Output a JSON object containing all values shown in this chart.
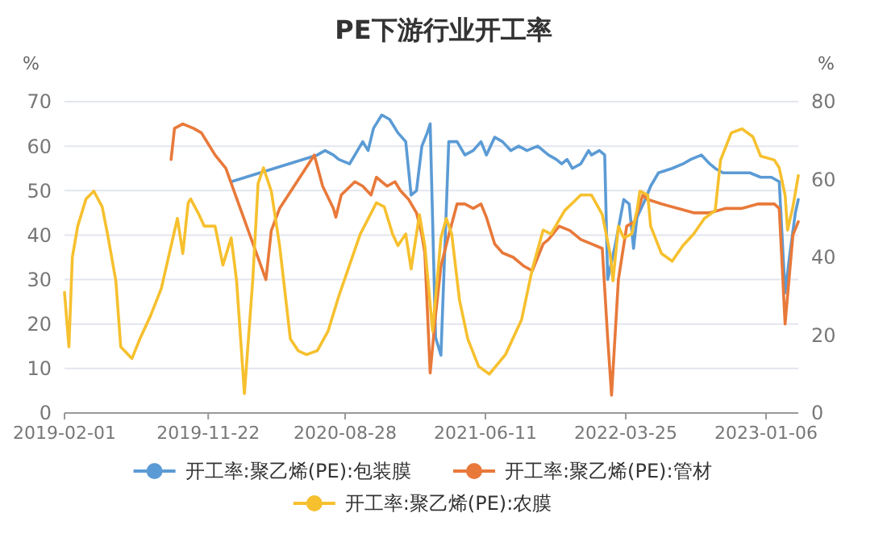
{
  "chart_data": {
    "type": "line",
    "title": "PE下游行业开工率",
    "ylabel": "%",
    "y2label": "%",
    "xlim": [
      "2019-02-01",
      "2023-03-13"
    ],
    "xticks": [
      "2019-02-01",
      "2019-11-22",
      "2020-08-28",
      "2021-06-11",
      "2022-03-25",
      "2023-01-06"
    ],
    "ylim": [
      0,
      70
    ],
    "yticks": [
      0,
      10,
      20,
      30,
      40,
      50,
      60,
      70
    ],
    "y2lim": [
      0,
      80
    ],
    "y2ticks": [
      0,
      20,
      40,
      60,
      80
    ],
    "grid": "y",
    "legend": "bottom",
    "marker": "none",
    "line_style": "solid",
    "series": [
      {
        "name": "开工率:聚乙烯(PE):包装膜",
        "color": "#5b9bd5",
        "x": [
          "2020-01-08",
          "2020-07-02",
          "2020-07-18",
          "2020-08-04",
          "2020-08-15",
          "2020-09-06",
          "2020-09-17",
          "2020-10-03",
          "2020-10-14",
          "2020-10-25",
          "2020-11-11",
          "2020-11-27",
          "2020-12-14",
          "2020-12-30",
          "2021-01-10",
          "2021-01-21",
          "2021-02-01",
          "2021-02-12",
          "2021-02-18",
          "2021-03-01",
          "2021-03-12",
          "2021-03-28",
          "2021-04-14",
          "2021-04-30",
          "2021-05-17",
          "2021-06-02",
          "2021-06-13",
          "2021-06-30",
          "2021-07-16",
          "2021-08-02",
          "2021-08-18",
          "2021-09-04",
          "2021-09-26",
          "2021-10-18",
          "2021-11-03",
          "2021-11-14",
          "2021-11-25",
          "2021-12-06",
          "2021-12-23",
          "2022-01-08",
          "2022-01-14",
          "2022-01-30",
          "2022-02-10",
          "2022-02-16",
          "2022-03-04",
          "2022-03-21",
          "2022-04-01",
          "2022-04-10",
          "2022-04-17",
          "2022-05-04",
          "2022-05-15",
          "2022-05-31",
          "2022-06-28",
          "2022-07-20",
          "2022-08-05",
          "2022-08-27",
          "2022-09-13",
          "2022-09-24",
          "2022-10-10",
          "2022-11-07",
          "2022-12-04",
          "2022-12-26",
          "2023-01-17",
          "2023-02-02",
          "2023-02-14",
          "2023-02-24",
          "2023-03-07",
          "2023-03-13"
        ],
        "values": [
          52,
          58,
          59,
          58,
          57,
          56,
          58,
          61,
          59,
          64,
          67,
          66,
          63,
          61,
          49,
          50,
          60,
          63,
          65,
          17,
          13,
          61,
          61,
          58,
          59,
          61,
          58,
          62,
          61,
          59,
          60,
          59,
          60,
          58,
          57,
          56,
          57,
          55,
          56,
          59,
          58,
          59,
          58,
          30,
          38,
          48,
          47,
          37,
          44,
          48,
          51,
          54,
          55,
          56,
          57,
          58,
          56,
          55,
          54,
          54,
          54,
          53,
          53,
          52,
          27,
          36,
          45,
          48
        ]
      },
      {
        "name": "开工率:聚乙烯(PE):管材",
        "color": "#e8793a",
        "x": [
          "2019-09-07",
          "2019-09-14",
          "2019-10-01",
          "2019-10-23",
          "2019-11-08",
          "2019-12-06",
          "2019-12-28",
          "2020-03-19",
          "2020-03-30",
          "2020-04-16",
          "2020-06-26",
          "2020-07-13",
          "2020-08-04",
          "2020-08-09",
          "2020-08-20",
          "2020-09-17",
          "2020-10-03",
          "2020-10-20",
          "2020-10-31",
          "2020-11-22",
          "2020-12-08",
          "2020-12-19",
          "2021-01-05",
          "2021-01-21",
          "2021-02-01",
          "2021-02-07",
          "2021-02-18",
          "2021-03-01",
          "2021-03-12",
          "2021-03-28",
          "2021-04-14",
          "2021-04-30",
          "2021-05-17",
          "2021-06-02",
          "2021-06-13",
          "2021-06-30",
          "2021-07-16",
          "2021-08-07",
          "2021-08-29",
          "2021-09-15",
          "2021-10-07",
          "2021-10-18",
          "2021-11-09",
          "2021-12-01",
          "2021-12-23",
          "2022-01-14",
          "2022-02-05",
          "2022-02-16",
          "2022-02-24",
          "2022-03-10",
          "2022-03-27",
          "2022-04-12",
          "2022-04-29",
          "2022-05-09",
          "2022-06-06",
          "2022-07-09",
          "2022-08-11",
          "2022-09-13",
          "2022-10-16",
          "2022-11-18",
          "2022-12-21",
          "2023-01-23",
          "2023-02-02",
          "2023-02-14",
          "2023-03-02",
          "2023-03-13"
        ],
        "values": [
          57,
          64,
          65,
          64,
          63,
          58,
          55,
          30,
          41,
          46,
          58,
          51,
          46,
          44,
          49,
          52,
          51,
          49,
          53,
          51,
          52,
          50,
          48,
          45,
          40,
          36,
          9,
          22,
          33,
          40,
          47,
          47,
          46,
          47,
          44,
          38,
          36,
          35,
          33,
          32,
          38,
          39,
          42,
          41,
          39,
          38,
          37,
          17,
          4,
          30,
          42,
          43,
          49,
          48,
          47,
          46,
          45,
          45,
          46,
          46,
          47,
          47,
          46,
          20,
          40,
          43
        ]
      },
      {
        "name": "开工率:聚乙烯(PE):农膜",
        "color": "#f6c02e",
        "axis": "y2",
        "x": [
          "2019-02-01",
          "2019-02-10",
          "2019-02-17",
          "2019-02-28",
          "2019-03-17",
          "2019-04-02",
          "2019-04-19",
          "2019-04-30",
          "2019-05-17",
          "2019-05-27",
          "2019-06-19",
          "2019-07-05",
          "2019-07-27",
          "2019-08-18",
          "2019-08-29",
          "2019-09-20",
          "2019-10-01",
          "2019-10-12",
          "2019-10-17",
          "2019-11-03",
          "2019-11-14",
          "2019-12-06",
          "2019-12-22",
          "2020-01-08",
          "2020-01-19",
          "2020-02-04",
          "2020-02-21",
          "2020-03-03",
          "2020-03-14",
          "2020-03-30",
          "2020-04-16",
          "2020-05-08",
          "2020-05-24",
          "2020-06-10",
          "2020-07-02",
          "2020-07-24",
          "2020-08-15",
          "2020-09-06",
          "2020-09-28",
          "2020-10-31",
          "2020-11-16",
          "2020-12-03",
          "2020-12-14",
          "2020-12-30",
          "2021-01-10",
          "2021-01-27",
          "2021-02-07",
          "2021-02-23",
          "2021-03-12",
          "2021-03-23",
          "2021-04-03",
          "2021-04-19",
          "2021-05-06",
          "2021-05-28",
          "2021-06-19",
          "2021-07-22",
          "2021-08-24",
          "2021-09-15",
          "2021-10-07",
          "2021-10-23",
          "2021-11-20",
          "2021-12-23",
          "2022-01-14",
          "2022-02-05",
          "2022-02-21",
          "2022-02-27",
          "2022-03-10",
          "2022-03-21",
          "2022-04-06",
          "2022-04-17",
          "2022-04-23",
          "2022-05-09",
          "2022-05-15",
          "2022-06-06",
          "2022-06-28",
          "2022-07-20",
          "2022-08-11",
          "2022-09-02",
          "2022-09-24",
          "2022-10-05",
          "2022-10-27",
          "2022-11-18",
          "2022-12-10",
          "2022-12-26",
          "2023-01-23",
          "2023-02-02",
          "2023-02-14",
          "2023-02-19",
          "2023-03-02",
          "2023-03-13"
        ],
        "values": [
          31,
          17,
          40,
          48,
          55,
          57,
          53,
          46,
          34,
          17,
          14,
          19,
          25,
          32,
          38,
          50,
          41,
          54,
          55,
          51,
          48,
          48,
          38,
          45,
          34,
          5,
          34,
          59,
          63,
          57,
          43,
          19,
          16,
          15,
          16,
          21,
          30,
          38,
          46,
          54,
          53,
          46,
          43,
          46,
          37,
          51,
          43,
          21,
          45,
          50,
          46,
          29,
          19,
          12,
          10,
          15,
          24,
          37,
          47,
          46,
          52,
          56,
          56,
          51,
          41,
          34,
          48,
          45,
          46,
          52,
          57,
          56,
          48,
          41,
          39,
          43,
          46,
          50,
          52,
          65,
          72,
          73,
          71,
          66,
          65,
          63,
          56,
          47,
          53,
          61
        ]
      }
    ]
  }
}
